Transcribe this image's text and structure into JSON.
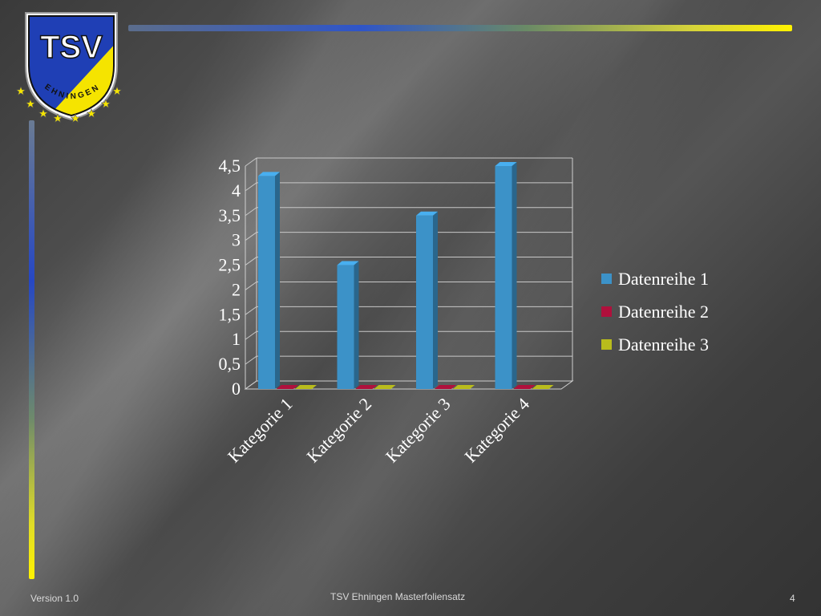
{
  "logo": {
    "letters": "TSV",
    "ring_text": "EHNINGEN",
    "colors": {
      "blue": "#1f3fb5",
      "yellow": "#f5e400"
    }
  },
  "chart_data": {
    "type": "bar",
    "categories": [
      "Kategorie 1",
      "Kategorie 2",
      "Kategorie 3",
      "Kategorie 4"
    ],
    "series": [
      {
        "name": "Datenreihe 1",
        "values": [
          4.3,
          2.5,
          3.5,
          4.5
        ],
        "color": "#3c92c8"
      },
      {
        "name": "Datenreihe 2",
        "values": [
          0,
          0,
          0,
          0
        ],
        "color": "#b0103c"
      },
      {
        "name": "Datenreihe 3",
        "values": [
          0,
          0,
          0,
          0
        ],
        "color": "#b9bc1c"
      }
    ],
    "yticks": [
      "0",
      "0,5",
      "1",
      "1,5",
      "2",
      "2,5",
      "3",
      "3,5",
      "4",
      "4,5"
    ],
    "ylim": [
      0,
      4.5
    ],
    "grid": true,
    "legend": "right",
    "title": "",
    "xlabel": "",
    "ylabel": ""
  },
  "footer": {
    "version": "Version 1.0",
    "title": "TSV Ehningen Masterfoliensatz",
    "page": "4"
  }
}
